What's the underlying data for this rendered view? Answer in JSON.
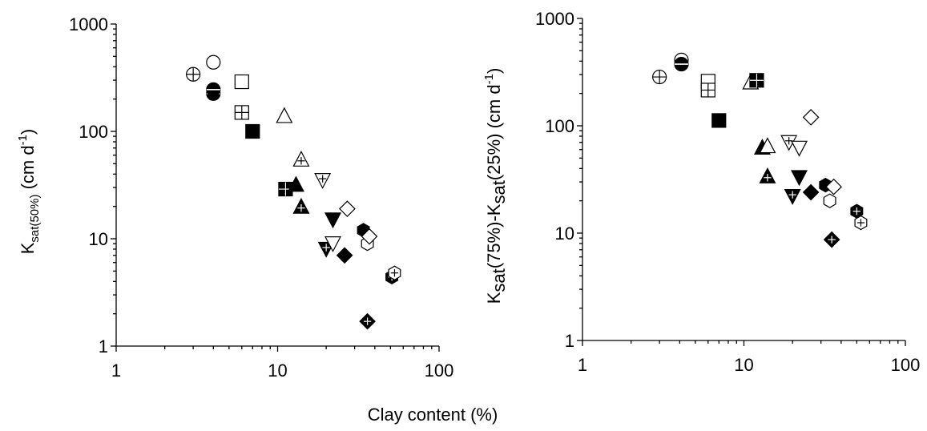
{
  "shared_xlabel": "Clay content (%)",
  "chart_data": [
    {
      "type": "scatter",
      "id": "left",
      "ylabel_main": "K",
      "ylabel_sub": "sat(50%)",
      "ylabel_rest": " (cm d",
      "ylabel_sup": "-1",
      "ylabel_end": ")",
      "xscale": "log",
      "yscale": "log",
      "xlim": [
        1,
        100
      ],
      "ylim": [
        1,
        1000
      ],
      "xticks": [
        "1",
        "10",
        "100"
      ],
      "yticks": [
        "1",
        "10",
        "100",
        "1000"
      ],
      "grid": false,
      "points": [
        {
          "x": 3,
          "y": 340,
          "marker": "circle-cross"
        },
        {
          "x": 4,
          "y": 440,
          "marker": "circle-open"
        },
        {
          "x": 4,
          "y": 225,
          "marker": "circle-filled-half"
        },
        {
          "x": 4,
          "y": 245,
          "marker": "circle-filled-half"
        },
        {
          "x": 6,
          "y": 290,
          "marker": "square-open"
        },
        {
          "x": 6,
          "y": 150,
          "marker": "square-grid"
        },
        {
          "x": 7,
          "y": 100,
          "marker": "square-filled"
        },
        {
          "x": 11,
          "y": 140,
          "marker": "triangle-open"
        },
        {
          "x": 11.2,
          "y": 29,
          "marker": "square-filled-cross"
        },
        {
          "x": 13,
          "y": 32,
          "marker": "triangle-filled"
        },
        {
          "x": 14,
          "y": 55,
          "marker": "triangle-cross"
        },
        {
          "x": 14,
          "y": 20,
          "marker": "triangle-filled-cross"
        },
        {
          "x": 19,
          "y": 35,
          "marker": "triangle-down-cross"
        },
        {
          "x": 20,
          "y": 8,
          "marker": "triangle-down-filled-cross"
        },
        {
          "x": 22,
          "y": 9,
          "marker": "triangle-down-open"
        },
        {
          "x": 22,
          "y": 15,
          "marker": "triangle-down-filled"
        },
        {
          "x": 26,
          "y": 7,
          "marker": "diamond-filled"
        },
        {
          "x": 27,
          "y": 19,
          "marker": "diamond-open"
        },
        {
          "x": 34,
          "y": 12,
          "marker": "hexagon-filled"
        },
        {
          "x": 36,
          "y": 9,
          "marker": "hexagon-open"
        },
        {
          "x": 36,
          "y": 1.7,
          "marker": "diamond-filled-cross"
        },
        {
          "x": 37,
          "y": 10.5,
          "marker": "diamond-open"
        },
        {
          "x": 51,
          "y": 4.4,
          "marker": "hexagon-filled-cross"
        },
        {
          "x": 53,
          "y": 4.8,
          "marker": "hexagon-cross"
        }
      ]
    },
    {
      "type": "scatter",
      "id": "right",
      "ylabel_main": "K",
      "ylabel_sub1": "sat",
      "ylabel_mid1": "(75%)-K",
      "ylabel_sub2": "sat",
      "ylabel_mid2": "(25%) (cm d",
      "ylabel_sup": "-1",
      "ylabel_end": ")",
      "xscale": "log",
      "yscale": "log",
      "xlim": [
        1,
        100
      ],
      "ylim": [
        1,
        1000
      ],
      "xticks": [
        "1",
        "10",
        "100"
      ],
      "yticks": [
        "1",
        "10",
        "100",
        "1000"
      ],
      "grid": false,
      "points": [
        {
          "x": 3,
          "y": 285,
          "marker": "circle-cross"
        },
        {
          "x": 4.1,
          "y": 410,
          "marker": "circle-open"
        },
        {
          "x": 4.1,
          "y": 375,
          "marker": "circle-filled-half"
        },
        {
          "x": 6,
          "y": 260,
          "marker": "square-open"
        },
        {
          "x": 6,
          "y": 215,
          "marker": "square-grid"
        },
        {
          "x": 7,
          "y": 112,
          "marker": "square-filled"
        },
        {
          "x": 11,
          "y": 255,
          "marker": "triangle-open"
        },
        {
          "x": 12,
          "y": 265,
          "marker": "square-filled-cross"
        },
        {
          "x": 13,
          "y": 63,
          "marker": "triangle-filled"
        },
        {
          "x": 14,
          "y": 65,
          "marker": "triangle-open"
        },
        {
          "x": 14,
          "y": 34,
          "marker": "triangle-filled-cross"
        },
        {
          "x": 19,
          "y": 70,
          "marker": "triangle-down-cross"
        },
        {
          "x": 22,
          "y": 62,
          "marker": "triangle-down-open"
        },
        {
          "x": 20,
          "y": 22,
          "marker": "triangle-down-filled-cross"
        },
        {
          "x": 22,
          "y": 33,
          "marker": "triangle-down-filled"
        },
        {
          "x": 26,
          "y": 120,
          "marker": "diamond-open"
        },
        {
          "x": 26,
          "y": 24,
          "marker": "diamond-filled"
        },
        {
          "x": 32,
          "y": 28,
          "marker": "hexagon-filled"
        },
        {
          "x": 34,
          "y": 20,
          "marker": "hexagon-open"
        },
        {
          "x": 36,
          "y": 27,
          "marker": "diamond-open"
        },
        {
          "x": 35,
          "y": 8.7,
          "marker": "diamond-filled-cross"
        },
        {
          "x": 50,
          "y": 16,
          "marker": "hexagon-filled-cross"
        },
        {
          "x": 53,
          "y": 12.5,
          "marker": "hexagon-cross"
        }
      ]
    }
  ]
}
